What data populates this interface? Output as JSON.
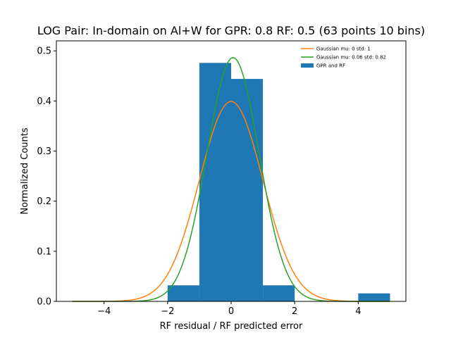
{
  "chart_data": {
    "type": "bar",
    "title": "LOG Pair: In-domain on Al+W for GPR: 0.8 RF: 0.5 (63 points 10 bins)",
    "xlabel": "RF residual / RF predicted error",
    "ylabel": "Normalized Counts",
    "xlim": [
      -5.5,
      5.5
    ],
    "ylim": [
      0,
      0.52
    ],
    "xticks": [
      -4,
      -2,
      0,
      2,
      4
    ],
    "xtick_labels": [
      "−4",
      "−2",
      "0",
      "2",
      "4"
    ],
    "yticks": [
      0.0,
      0.1,
      0.2,
      0.3,
      0.4,
      0.5
    ],
    "ytick_labels": [
      "0.0",
      "0.1",
      "0.2",
      "0.3",
      "0.4",
      "0.5"
    ],
    "grid": false,
    "legend_position": "top-right",
    "histogram": {
      "name": "GPR and RF",
      "color": "#1f77b4",
      "bins": [
        {
          "x0": -2,
          "x1": -1,
          "value": 0.032
        },
        {
          "x0": -1,
          "x1": 0,
          "value": 0.476
        },
        {
          "x0": 0,
          "x1": 1,
          "value": 0.444
        },
        {
          "x0": 1,
          "x1": 2,
          "value": 0.032
        },
        {
          "x0": 4,
          "x1": 5,
          "value": 0.016
        }
      ]
    },
    "series": [
      {
        "name": "Gaussian mu: 0 std: 1",
        "type": "line",
        "mu": 0,
        "std": 1,
        "color": "#ff7f0e",
        "x_range": [
          -5,
          5
        ]
      },
      {
        "name": "Gaussian mu: 0.06 std: 0.82",
        "type": "line",
        "mu": 0.06,
        "std": 0.82,
        "color": "#2ca02c",
        "x_range": [
          -5,
          5
        ]
      }
    ]
  }
}
